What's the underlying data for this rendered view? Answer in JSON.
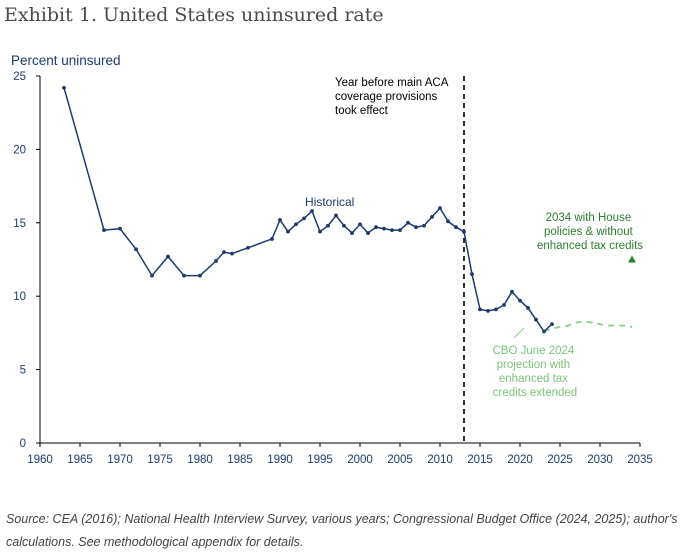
{
  "header": {
    "title": "Exhibit 1. United States uninsured rate"
  },
  "footer": {
    "source": "Source: CEA (2016); National Health Interview Survey, various years; Congressional Budget Office (2024, 2025); author's calculations. See methodological appendix for details."
  },
  "colors": {
    "historical": "#1f3a6e",
    "cbo": "#8dc98a",
    "house": "#2e7d32",
    "axis": "#000000"
  },
  "chart_data": {
    "type": "line",
    "title": "Exhibit 1. United States uninsured rate",
    "ylabel": "Percent uninsured",
    "xlabel": "",
    "xlim": [
      1960,
      2035
    ],
    "ylim": [
      0,
      25
    ],
    "xticks": [
      1960,
      1965,
      1970,
      1975,
      1980,
      1985,
      1990,
      1995,
      2000,
      2005,
      2010,
      2015,
      2020,
      2025,
      2030,
      2035
    ],
    "yticks": [
      0,
      5,
      10,
      15,
      20,
      25
    ],
    "grid": false,
    "series": [
      {
        "name": "Historical",
        "style": "solid-with-markers",
        "x": [
          1963,
          1968,
          1970,
          1972,
          1974,
          1976,
          1978,
          1980,
          1982,
          1983,
          1984,
          1986,
          1989,
          1990,
          1991,
          1992,
          1993,
          1994,
          1995,
          1996,
          1997,
          1998,
          1999,
          2000,
          2001,
          2002,
          2003,
          2004,
          2005,
          2006,
          2007,
          2008,
          2009,
          2010,
          2011,
          2012,
          2013,
          2014,
          2015,
          2016,
          2017,
          2018,
          2019,
          2020,
          2021,
          2022,
          2023,
          2024
        ],
        "y": [
          24.2,
          14.5,
          14.6,
          13.2,
          11.4,
          12.7,
          11.4,
          11.4,
          12.4,
          13.0,
          12.9,
          13.3,
          13.9,
          15.2,
          14.4,
          14.9,
          15.3,
          15.8,
          14.4,
          14.8,
          15.5,
          14.8,
          14.3,
          14.9,
          14.3,
          14.7,
          14.6,
          14.5,
          14.5,
          15.0,
          14.7,
          14.8,
          15.4,
          16.0,
          15.1,
          14.7,
          14.4,
          11.5,
          9.1,
          9.0,
          9.1,
          9.4,
          10.3,
          9.7,
          9.2,
          8.4,
          7.6,
          8.1
        ]
      },
      {
        "name": "CBO June 2024 projection with enhanced tax credits extended",
        "style": "dashed",
        "x": [
          2023,
          2024,
          2025,
          2026,
          2027,
          2028,
          2029,
          2030,
          2031,
          2032,
          2033,
          2034
        ],
        "y": [
          7.6,
          7.8,
          7.9,
          8.0,
          8.2,
          8.3,
          8.2,
          8.1,
          8.0,
          8.0,
          8.0,
          7.9
        ]
      },
      {
        "name": "2034 with House policies & without enhanced tax credits",
        "style": "triangle-marker",
        "x": [
          2034
        ],
        "y": [
          12.5
        ]
      }
    ],
    "vline": {
      "x": 2013,
      "label": "Year before main ACA coverage provisions took effect"
    },
    "annotations": {
      "historical": "Historical",
      "vline_lines": [
        "Year before main ACA",
        "coverage provisions",
        "took effect"
      ],
      "house_lines": [
        "2034 with House",
        "policies & without",
        "enhanced tax credits"
      ],
      "cbo_lines": [
        "CBO June 2024",
        "projection with",
        "enhanced tax",
        "credits extended"
      ]
    }
  }
}
